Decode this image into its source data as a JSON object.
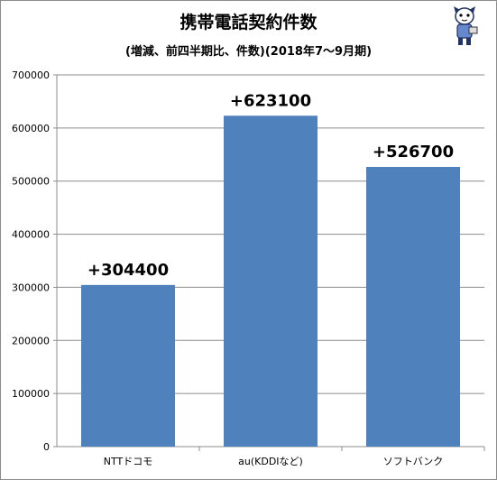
{
  "chart_data": {
    "type": "bar",
    "title": "携帯電話契約件数",
    "subtitle": "(増減、前四半期比、件数)(2018年7～9月期)",
    "categories": [
      "NTTドコモ",
      "au(KDDIなど)",
      "ソフトバンク"
    ],
    "values": [
      304400,
      623100,
      526700
    ],
    "data_labels": [
      "+304400",
      "+623100",
      "+526700"
    ],
    "yticks": [
      "0",
      "100000",
      "200000",
      "300000",
      "400000",
      "500000",
      "600000",
      "700000"
    ],
    "ylim": [
      0,
      700000
    ],
    "grid": true,
    "bar_color": "#4f81bd",
    "grid_color": "#8c8c8c"
  },
  "mascot": {
    "icon": "cartoon-character-icon"
  }
}
